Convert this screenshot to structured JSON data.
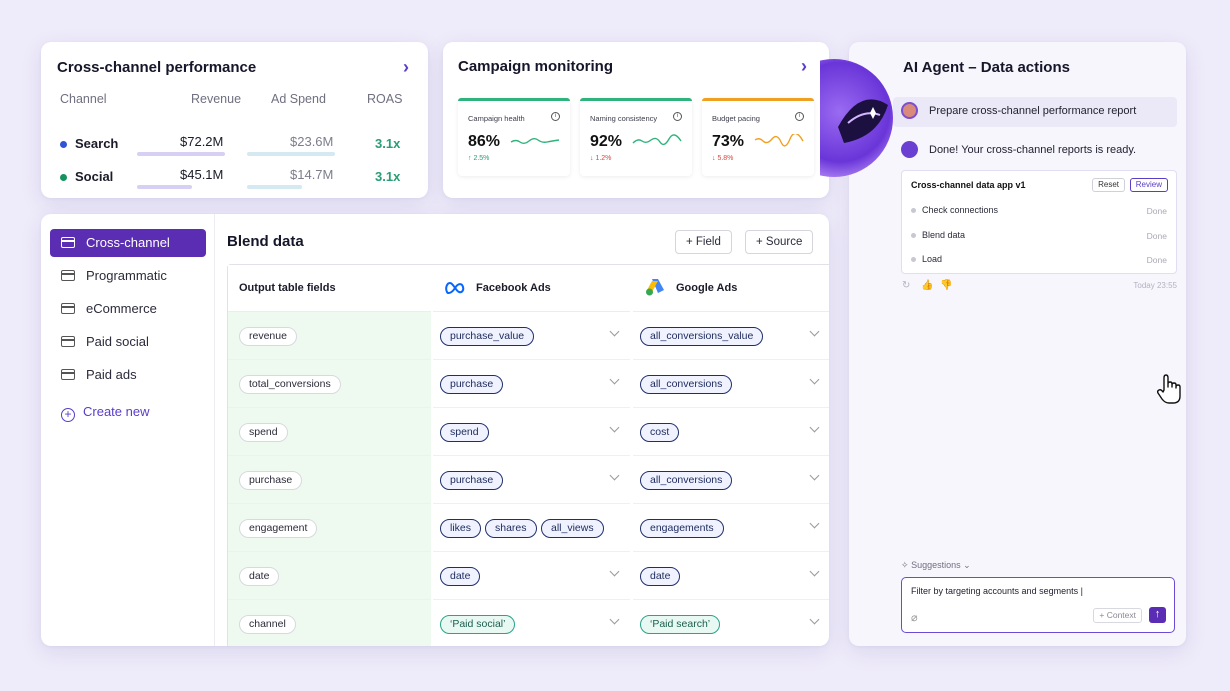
{
  "perf": {
    "title": "Cross-channel performance",
    "headers": {
      "channel": "Channel",
      "revenue": "Revenue",
      "ad_spend": "Ad Spend",
      "roas": "ROAS"
    },
    "rows": [
      {
        "name": "Search",
        "revenue": "$72.2M",
        "ad_spend": "$23.6M",
        "roas": "3.1x",
        "dot_color": "#2f55d4"
      },
      {
        "name": "Social",
        "revenue": "$45.1M",
        "ad_spend": "$14.7M",
        "roas": "3.1x",
        "dot_color": "#17925f"
      }
    ]
  },
  "monitoring": {
    "title": "Campaign monitoring",
    "cards": [
      {
        "label": "Campaign health",
        "value": "86%",
        "delta": "↑ 2.5%",
        "trend": "up",
        "color": "#2fb37c"
      },
      {
        "label": "Naming consistency",
        "value": "92%",
        "delta": "↓ 1.2%",
        "trend": "down",
        "color": "#2fb37c"
      },
      {
        "label": "Budget pacing",
        "value": "73%",
        "delta": "↓ 5.8%",
        "trend": "down",
        "color": "#f0a020"
      }
    ]
  },
  "agent": {
    "title": "AI Agent – Data actions",
    "user_message": "Prepare cross-channel performance report",
    "agent_message": "Done!  Your cross-channel reports is ready.",
    "task": {
      "title": "Cross-channel data app v1",
      "reset_label": "Reset",
      "review_label": "Review",
      "steps": [
        {
          "label": "Check connections",
          "status": "Done"
        },
        {
          "label": "Blend data",
          "status": "Done"
        },
        {
          "label": "Load",
          "status": "Done"
        }
      ]
    },
    "timestamp": "Today 23:55",
    "suggestions_label": "Suggestions",
    "input_value": "Filter by targeting accounts and segments |",
    "context_label": "+ Context"
  },
  "sidebar": {
    "items": [
      {
        "label": "Cross-channel",
        "active": true
      },
      {
        "label": "Programmatic",
        "active": false
      },
      {
        "label": "eCommerce",
        "active": false
      },
      {
        "label": "Paid social",
        "active": false
      },
      {
        "label": "Paid ads",
        "active": false
      }
    ],
    "create_label": "Create new"
  },
  "blend": {
    "title": "Blend data",
    "field_button": "+ Field",
    "source_button": "+ Source",
    "columns": {
      "output": "Output table fields",
      "facebook": "Facebook Ads",
      "google": "Google Ads"
    },
    "rows": [
      {
        "output": "revenue",
        "facebook": [
          "purchase_value"
        ],
        "google": [
          "all_conversions_value"
        ]
      },
      {
        "output": "total_conversions",
        "facebook": [
          "purchase"
        ],
        "google": [
          "all_conversions"
        ]
      },
      {
        "output": "spend",
        "facebook": [
          "spend"
        ],
        "google": [
          "cost"
        ]
      },
      {
        "output": "purchase",
        "facebook": [
          "purchase"
        ],
        "google": [
          "all_conversions"
        ]
      },
      {
        "output": "engagement",
        "facebook": [
          "likes",
          "shares",
          "all_views"
        ],
        "google": [
          "engagements"
        ]
      },
      {
        "output": "date",
        "facebook": [
          "date"
        ],
        "google": [
          "date"
        ]
      },
      {
        "output": "channel",
        "facebook": [
          "‘Paid social’"
        ],
        "google": [
          "‘Paid search’"
        ],
        "literal": true
      }
    ]
  }
}
